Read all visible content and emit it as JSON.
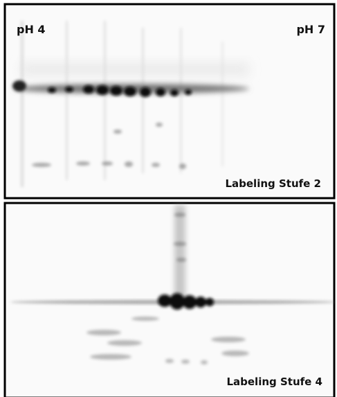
{
  "panels": [
    {
      "labels": {
        "left": "pH 4",
        "right": "pH 7"
      },
      "caption": "Labeling Stufe 2"
    },
    {
      "caption": "Labeling Stufe 4"
    }
  ]
}
